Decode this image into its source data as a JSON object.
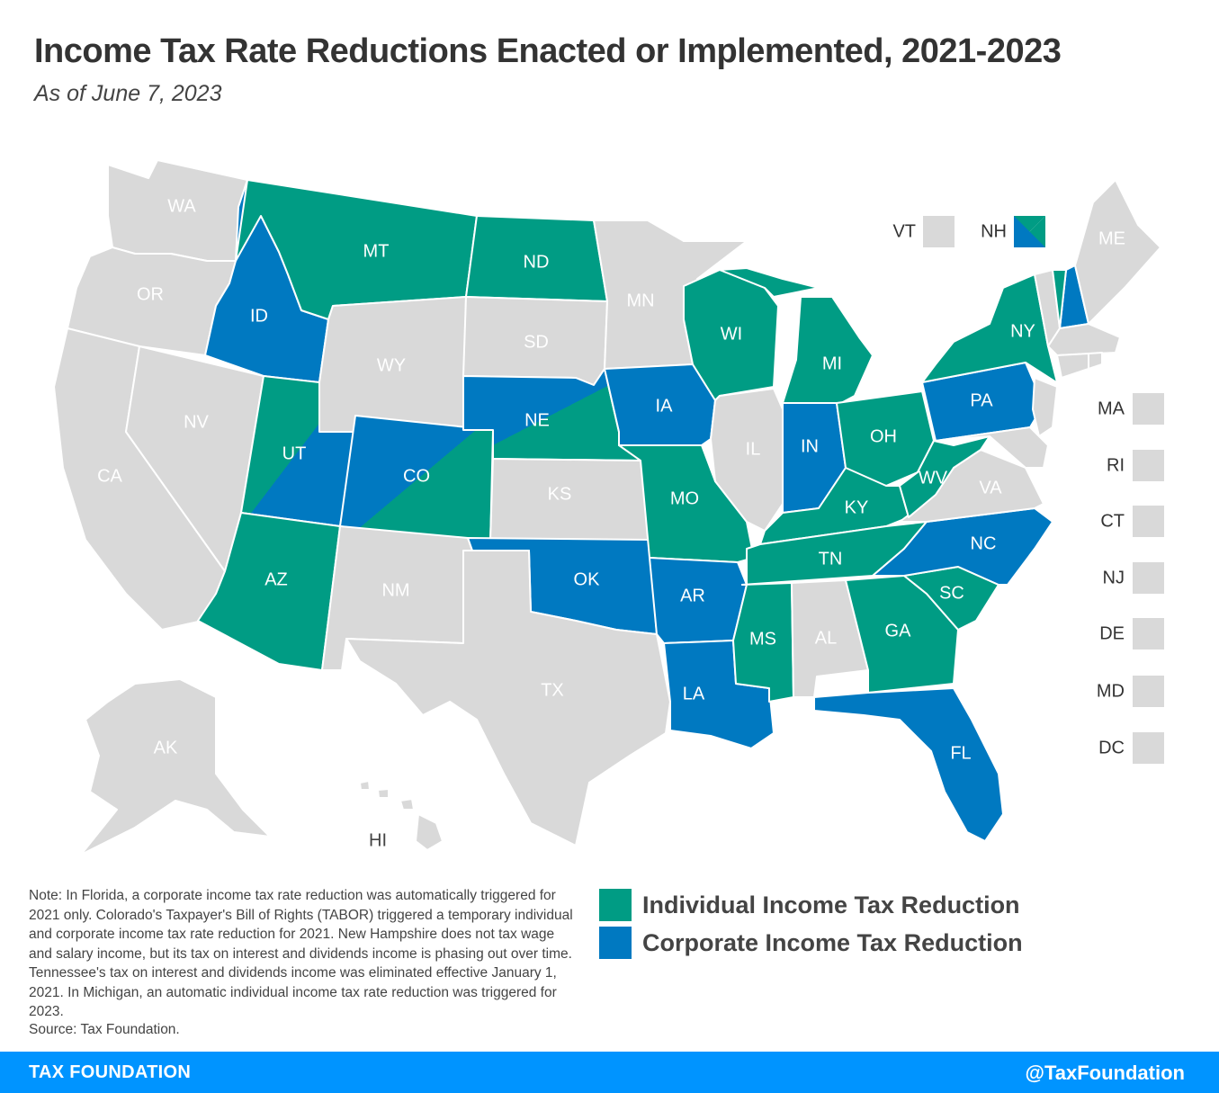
{
  "header": {
    "title": "Income Tax Rate Reductions Enacted or Implemented, 2021-2023",
    "subtitle": "As of June 7, 2023"
  },
  "colors": {
    "individual": "#009c84",
    "corporate": "#0079c1",
    "none": "#d9d9d9",
    "footer": "#0094ff"
  },
  "map_labels": {
    "WA": "WA",
    "OR": "OR",
    "CA": "CA",
    "NV": "NV",
    "ID": "ID",
    "MT": "MT",
    "WY": "WY",
    "UT": "UT",
    "AZ": "AZ",
    "CO": "CO",
    "NM": "NM",
    "ND": "ND",
    "SD": "SD",
    "NE": "NE",
    "KS": "KS",
    "OK": "OK",
    "TX": "TX",
    "MN": "MN",
    "IA": "IA",
    "MO": "MO",
    "AR": "AR",
    "LA": "LA",
    "WI": "WI",
    "IL": "IL",
    "MI": "MI",
    "IN": "IN",
    "OH": "OH",
    "KY": "KY",
    "TN": "TN",
    "MS": "MS",
    "AL": "AL",
    "GA": "GA",
    "FL": "FL",
    "SC": "SC",
    "NC": "NC",
    "VA": "VA",
    "WV": "WV",
    "PA": "PA",
    "NY": "NY",
    "ME": "ME",
    "AK": "AK",
    "HI": "HI"
  },
  "small_states": {
    "VT": "VT",
    "NH": "NH",
    "MA": "MA",
    "RI": "RI",
    "CT": "CT",
    "NJ": "NJ",
    "DE": "DE",
    "MD": "MD",
    "DC": "DC"
  },
  "legend": {
    "individual": "Individual Income Tax Reduction",
    "corporate": "Corporate Income Tax Reduction"
  },
  "note": "Note: In Florida, a corporate income tax rate reduction was automatically triggered for 2021 only. Colorado's Taxpayer's Bill of Rights (TABOR) triggered a temporary individual and corporate income tax rate reduction for 2021. New Hampshire does not tax wage and salary income, but its tax on interest and dividends income is phasing out over time. Tennessee's tax on interest and dividends income was eliminated effective January 1, 2021. In Michigan, an automatic individual income tax rate reduction was triggered for 2023.",
  "source": "Source: Tax Foundation.",
  "footer": {
    "left": "TAX FOUNDATION",
    "right": "@TaxFoundation"
  }
}
